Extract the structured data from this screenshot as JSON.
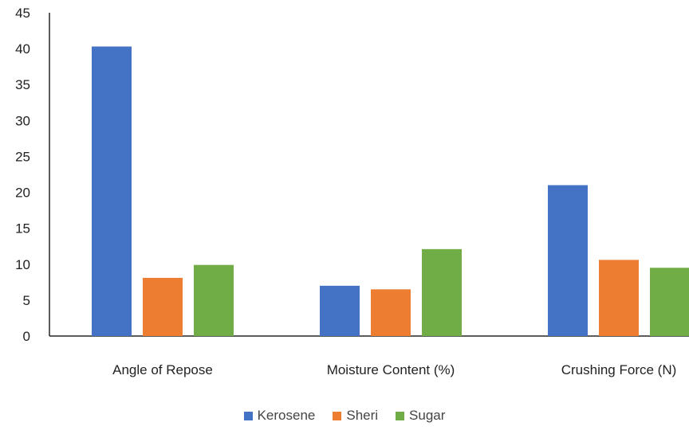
{
  "chart_data": {
    "type": "bar",
    "title": "",
    "xlabel": "",
    "ylabel": "",
    "ylim": [
      0,
      45
    ],
    "yticks": [
      0,
      5,
      10,
      15,
      20,
      25,
      30,
      35,
      40,
      45
    ],
    "grid": false,
    "legend_position": "bottom",
    "categories": [
      "Angle of Repose",
      "Moisture Content (%)",
      "Crushing Force (N)"
    ],
    "series": [
      {
        "name": "Kerosene",
        "color": "#4472C4",
        "values": [
          40.3,
          7.0,
          21.0
        ]
      },
      {
        "name": "Sheri",
        "color": "#ED7D31",
        "values": [
          8.1,
          6.5,
          10.6
        ]
      },
      {
        "name": "Sugar",
        "color": "#70AD47",
        "values": [
          9.9,
          12.1,
          9.5
        ]
      }
    ]
  }
}
